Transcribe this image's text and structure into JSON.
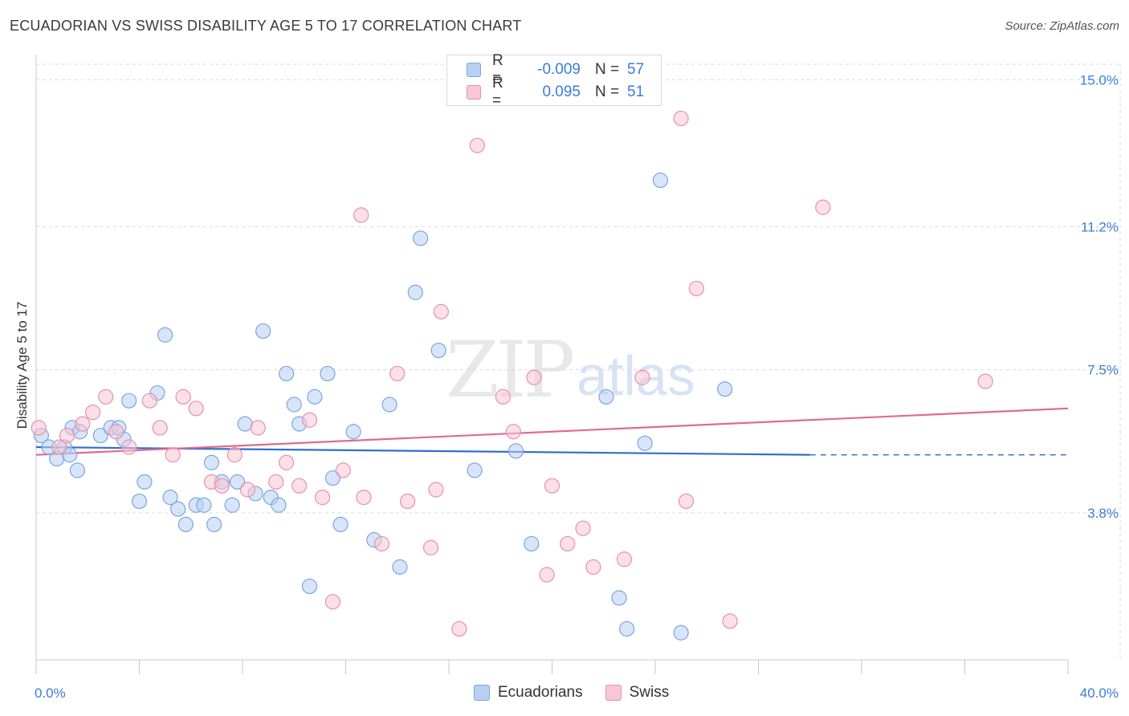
{
  "title": "ECUADORIAN VS SWISS DISABILITY AGE 5 TO 17 CORRELATION CHART",
  "source": "Source: ZipAtlas.com",
  "watermark": {
    "zip": "ZIP",
    "atlas": "atlas"
  },
  "legend": {
    "rows": [
      {
        "r_label": "R =",
        "r_value": "-0.009",
        "n_label": "N =",
        "n_value": "57"
      },
      {
        "r_label": "R =",
        "r_value": "0.095",
        "n_label": "N =",
        "n_value": "51"
      }
    ]
  },
  "bottom_legend": [
    "Ecuadorians",
    "Swiss"
  ],
  "colors": {
    "blue_fill": "#b8d0f2",
    "blue_stroke": "#7aa6e0",
    "blue_line": "#2f6fd0",
    "pink_fill": "#f8c6d4",
    "pink_stroke": "#e890aa",
    "pink_line": "#e06a94",
    "grid": "#d9d9d9",
    "tick_text": "#3b7dd8"
  },
  "chart_data": {
    "type": "scatter",
    "title": "ECUADORIAN VS SWISS DISABILITY AGE 5 TO 17 CORRELATION CHART",
    "xlabel": "",
    "ylabel": "Disability Age 5 to 17",
    "xlim": [
      0,
      40
    ],
    "ylim": [
      0,
      15.4
    ],
    "x_tick_labels": [
      "0.0%",
      "40.0%"
    ],
    "y_ticks": [
      3.8,
      7.5,
      11.2,
      15.0
    ],
    "y_tick_labels": [
      "3.8%",
      "7.5%",
      "11.2%",
      "15.0%"
    ],
    "grid": "horizontal dashed",
    "series": [
      {
        "name": "Ecuadorians",
        "points": [
          [
            0.2,
            5.8
          ],
          [
            0.5,
            5.5
          ],
          [
            0.8,
            5.2
          ],
          [
            1.1,
            5.5
          ],
          [
            1.3,
            5.3
          ],
          [
            1.4,
            6.0
          ],
          [
            1.6,
            4.9
          ],
          [
            1.7,
            5.9
          ],
          [
            2.5,
            5.8
          ],
          [
            2.9,
            6.0
          ],
          [
            3.2,
            6.0
          ],
          [
            3.4,
            5.7
          ],
          [
            3.6,
            6.7
          ],
          [
            4.0,
            4.1
          ],
          [
            4.2,
            4.6
          ],
          [
            4.7,
            6.9
          ],
          [
            5.0,
            8.4
          ],
          [
            5.2,
            4.2
          ],
          [
            5.5,
            3.9
          ],
          [
            5.8,
            3.5
          ],
          [
            6.2,
            4.0
          ],
          [
            6.5,
            4.0
          ],
          [
            6.8,
            5.1
          ],
          [
            6.9,
            3.5
          ],
          [
            7.2,
            4.6
          ],
          [
            7.6,
            4.0
          ],
          [
            7.8,
            4.6
          ],
          [
            8.1,
            6.1
          ],
          [
            8.5,
            4.3
          ],
          [
            8.8,
            8.5
          ],
          [
            9.1,
            4.2
          ],
          [
            9.4,
            4.0
          ],
          [
            9.7,
            7.4
          ],
          [
            10.0,
            6.6
          ],
          [
            10.2,
            6.1
          ],
          [
            10.8,
            6.8
          ],
          [
            11.3,
            7.4
          ],
          [
            11.5,
            4.7
          ],
          [
            11.8,
            3.5
          ],
          [
            12.3,
            5.9
          ],
          [
            13.1,
            3.1
          ],
          [
            13.7,
            6.6
          ],
          [
            14.1,
            2.4
          ],
          [
            14.7,
            9.5
          ],
          [
            14.9,
            10.9
          ],
          [
            15.6,
            8.0
          ],
          [
            17.0,
            4.9
          ],
          [
            18.6,
            5.4
          ],
          [
            19.2,
            3.0
          ],
          [
            22.1,
            6.8
          ],
          [
            22.6,
            1.6
          ],
          [
            22.9,
            0.8
          ],
          [
            23.6,
            5.6
          ],
          [
            24.2,
            12.4
          ],
          [
            25.0,
            0.7
          ],
          [
            26.7,
            7.0
          ],
          [
            10.6,
            1.9
          ]
        ]
      },
      {
        "name": "Swiss",
        "points": [
          [
            0.1,
            6.0
          ],
          [
            0.9,
            5.5
          ],
          [
            1.2,
            5.8
          ],
          [
            1.8,
            6.1
          ],
          [
            2.2,
            6.4
          ],
          [
            2.7,
            6.8
          ],
          [
            3.1,
            5.9
          ],
          [
            3.6,
            5.5
          ],
          [
            4.4,
            6.7
          ],
          [
            4.8,
            6.0
          ],
          [
            5.3,
            5.3
          ],
          [
            5.7,
            6.8
          ],
          [
            6.2,
            6.5
          ],
          [
            6.8,
            4.6
          ],
          [
            7.2,
            4.5
          ],
          [
            7.7,
            5.3
          ],
          [
            8.2,
            4.4
          ],
          [
            8.6,
            6.0
          ],
          [
            9.3,
            4.6
          ],
          [
            9.7,
            5.1
          ],
          [
            10.2,
            4.5
          ],
          [
            10.6,
            6.2
          ],
          [
            11.1,
            4.2
          ],
          [
            11.5,
            1.5
          ],
          [
            11.9,
            4.9
          ],
          [
            12.6,
            11.5
          ],
          [
            12.7,
            4.2
          ],
          [
            13.4,
            3.0
          ],
          [
            14.0,
            7.4
          ],
          [
            14.4,
            4.1
          ],
          [
            15.3,
            2.9
          ],
          [
            15.5,
            4.4
          ],
          [
            15.7,
            9.0
          ],
          [
            16.4,
            0.8
          ],
          [
            17.1,
            13.3
          ],
          [
            18.1,
            6.8
          ],
          [
            18.5,
            5.9
          ],
          [
            19.3,
            7.3
          ],
          [
            19.8,
            2.2
          ],
          [
            20.0,
            4.5
          ],
          [
            20.6,
            3.0
          ],
          [
            21.2,
            3.4
          ],
          [
            21.6,
            2.4
          ],
          [
            22.8,
            2.6
          ],
          [
            23.5,
            7.3
          ],
          [
            25.0,
            14.0
          ],
          [
            25.2,
            4.1
          ],
          [
            25.6,
            9.6
          ],
          [
            26.9,
            1.0
          ],
          [
            30.5,
            11.7
          ],
          [
            36.8,
            7.2
          ]
        ]
      }
    ],
    "trend_lines": [
      {
        "series": "Ecuadorians",
        "x_solid": [
          0,
          30
        ],
        "y_solid": [
          5.5,
          5.3
        ],
        "x_dashed": [
          30,
          40
        ],
        "y_dashed": [
          5.3,
          5.3
        ]
      },
      {
        "series": "Swiss",
        "x": [
          0,
          40
        ],
        "y": [
          5.3,
          6.5
        ]
      }
    ]
  }
}
